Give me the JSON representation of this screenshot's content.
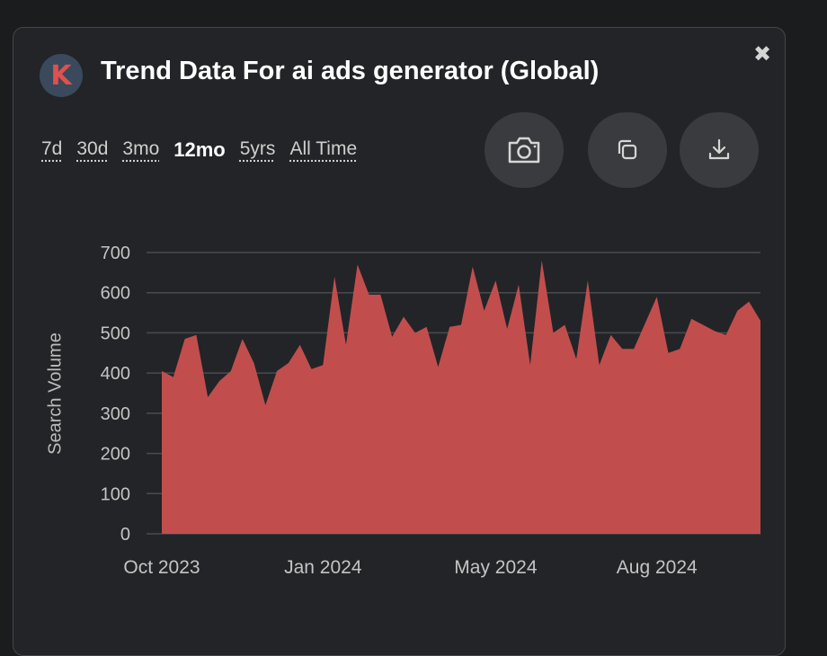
{
  "header": {
    "logo_letter": "K",
    "title": "Trend Data For ai ads generator (Global)",
    "close_glyph": "✖"
  },
  "time_ranges": [
    {
      "label": "7d",
      "active": false
    },
    {
      "label": "30d",
      "active": false
    },
    {
      "label": "3mo",
      "active": false
    },
    {
      "label": "12mo",
      "active": true
    },
    {
      "label": "5yrs",
      "active": false
    },
    {
      "label": "All Time",
      "active": false
    }
  ],
  "actions": [
    {
      "name": "screenshot-button",
      "icon": "camera-icon"
    },
    {
      "name": "copy-button",
      "icon": "copy-icon"
    },
    {
      "name": "download-button",
      "icon": "download-icon"
    }
  ],
  "colors": {
    "area": "#c14e4d",
    "background": "#232427",
    "grid": "#4a4b4f"
  },
  "chart_data": {
    "type": "area",
    "title": "",
    "ylabel": "Search Volume",
    "xlabel": "",
    "ylim": [
      0,
      700
    ],
    "yticks": [
      0,
      100,
      200,
      300,
      400,
      500,
      600,
      700
    ],
    "xticks": [
      "Oct 2023",
      "Jan 2024",
      "May 2024",
      "Aug 2024"
    ],
    "grid": true,
    "series": [
      {
        "values": [
          405,
          390,
          485,
          495,
          340,
          380,
          405,
          485,
          425,
          320,
          405,
          425,
          470,
          410,
          420,
          640,
          470,
          670,
          595,
          595,
          490,
          540,
          500,
          515,
          415,
          515,
          520,
          665,
          555,
          630,
          510,
          620,
          420,
          680,
          500,
          520,
          435,
          630,
          420,
          495,
          460,
          460,
          525,
          590,
          450,
          460,
          535,
          520,
          505,
          495,
          555,
          578,
          530
        ]
      }
    ]
  }
}
